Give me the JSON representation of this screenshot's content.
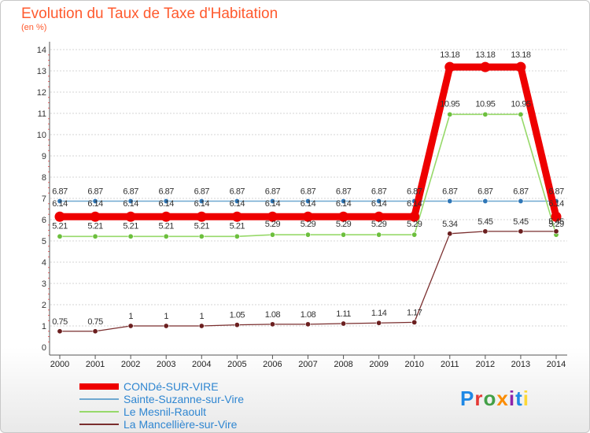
{
  "title": "Evolution du Taux de Taxe d'Habitation",
  "unit": "(en %)",
  "brand": {
    "letters": [
      "P",
      "r",
      "o",
      "x",
      "i",
      "t",
      "i"
    ],
    "colors": [
      "#1e88e5",
      "#e53935",
      "#43a047",
      "#fb8c00",
      "#8e24aa",
      "#1e88e5",
      "#fdd835"
    ]
  },
  "chart_data": {
    "type": "line",
    "title": "Evolution du Taux de Taxe d'Habitation",
    "ylabel": "(en %)",
    "xlabel": "",
    "x": [
      "2000",
      "2001",
      "2002",
      "2003",
      "2004",
      "2005",
      "2006",
      "2007",
      "2008",
      "2009",
      "2010",
      "2011",
      "2012",
      "2013",
      "2014"
    ],
    "ylim": [
      0,
      14
    ],
    "yticks": [
      "0",
      "1",
      "2",
      "3",
      "4",
      "5",
      "6",
      "7",
      "8",
      "9",
      "10",
      "11",
      "12",
      "13",
      "14"
    ],
    "grid": "horizontal",
    "legend_position": "bottom-left",
    "series": [
      {
        "name": "Sainte-Suzanne-sur-Vire",
        "color": "#6fa8d0",
        "marker": "#2f77b7",
        "values": [
          6.87,
          6.87,
          6.87,
          6.87,
          6.87,
          6.87,
          6.87,
          6.87,
          6.87,
          6.87,
          6.87,
          6.87,
          6.87,
          6.87,
          6.87
        ],
        "labels": [
          "6.87",
          "6.87",
          "6.87",
          "6.87",
          "6.87",
          "6.87",
          "6.87",
          "6.87",
          "6.87",
          "6.87",
          "6.87",
          "6.87",
          "6.87",
          "6.87",
          "6.87"
        ]
      },
      {
        "name": "Le Mesnil-Raoult",
        "color": "#97d96a",
        "marker": "#6cbf3d",
        "values": [
          5.21,
          5.21,
          5.21,
          5.21,
          5.21,
          5.21,
          5.29,
          5.29,
          5.29,
          5.29,
          5.29,
          10.95,
          10.95,
          10.95,
          5.29
        ],
        "labels": [
          "5.21",
          "5.21",
          "5.21",
          "5.21",
          "5.21",
          "5.21",
          "5.29",
          "5.29",
          "5.29",
          "5.29",
          "5.29",
          "10.95",
          "10.95",
          "10.95",
          "5.29"
        ]
      },
      {
        "name": "La Mancellière-sur-Vire",
        "color": "#7a2e2e",
        "marker": "#6b1f1f",
        "values": [
          0.75,
          0.75,
          1,
          1,
          1,
          1.05,
          1.08,
          1.08,
          1.11,
          1.14,
          1.17,
          5.34,
          5.45,
          5.45,
          5.45
        ],
        "labels": [
          "0.75",
          "0.75",
          "1",
          "1",
          "1",
          "1.05",
          "1.08",
          "1.08",
          "1.11",
          "1.14",
          "1.17",
          "5.34",
          "5.45",
          "5.45",
          "5.45"
        ]
      },
      {
        "name": "CONDé-SUR-VIRE",
        "color": "#ee0000",
        "marker": "#ee0000",
        "values": [
          6.14,
          6.14,
          6.14,
          6.14,
          6.14,
          6.14,
          6.14,
          6.14,
          6.14,
          6.14,
          6.14,
          13.18,
          13.18,
          13.18,
          6.14
        ],
        "labels": [
          "6.14",
          "6.14",
          "6.14",
          "6.14",
          "6.14",
          "6.14",
          "6.14",
          "6.14",
          "6.14",
          "6.14",
          "6.14",
          "13.18",
          "13.18",
          "13.18",
          "6.14"
        ]
      }
    ],
    "legend": [
      "CONDé-SUR-VIRE",
      "Sainte-Suzanne-sur-Vire",
      "Le Mesnil-Raoult",
      "La Mancellière-sur-Vire"
    ]
  }
}
